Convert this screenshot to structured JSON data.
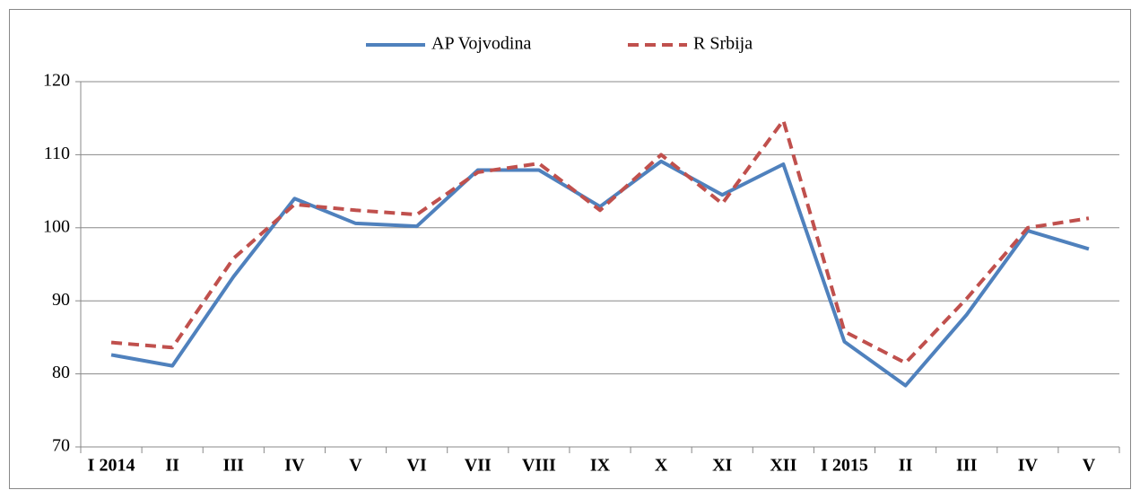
{
  "chart_data": {
    "type": "line",
    "categories": [
      "I 2014",
      "II",
      "III",
      "IV",
      "V",
      "VI",
      "VII",
      "VIII",
      "IX",
      "X",
      "XI",
      "XII",
      "I 2015",
      "II",
      "III",
      "IV",
      "V"
    ],
    "series": [
      {
        "name": "AP Vojvodina",
        "color": "#4f81bd",
        "dash": false,
        "values": [
          82.6,
          81.1,
          93.3,
          104.0,
          100.6,
          100.2,
          107.9,
          107.9,
          102.9,
          109.1,
          104.5,
          108.7,
          84.4,
          78.4,
          88.1,
          99.6,
          97.1
        ]
      },
      {
        "name": "R Srbija",
        "color": "#c0504d",
        "dash": true,
        "values": [
          84.3,
          83.6,
          95.8,
          103.2,
          102.4,
          101.8,
          107.6,
          108.8,
          102.4,
          110.0,
          103.3,
          114.7,
          85.8,
          81.5,
          90.3,
          100.0,
          101.3
        ]
      }
    ],
    "ylim": [
      70,
      120
    ],
    "yticks": [
      70,
      80,
      90,
      100,
      110,
      120
    ],
    "grid": true,
    "legend": "top"
  }
}
